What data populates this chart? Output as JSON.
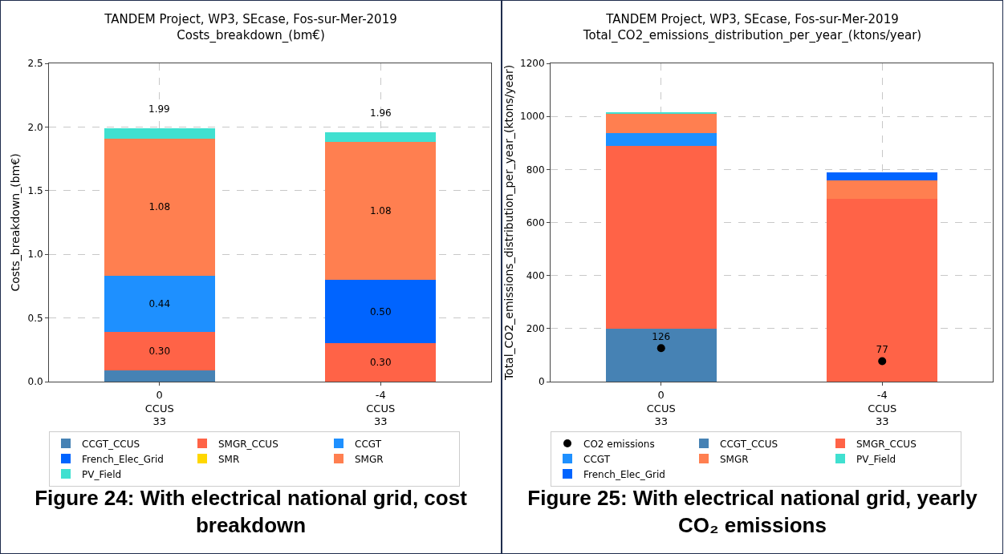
{
  "chart_data": [
    {
      "type": "bar",
      "stacked": true,
      "title": "TANDEM Project, WP3, SEcase, Fos-sur-Mer-2019\nCosts_breakdown_(bm€)",
      "ylabel": "Costs_breakdown_(bm€)",
      "categories": [
        "0\nCCUS\n33",
        "-4\nCCUS\n33"
      ],
      "series": [
        {
          "name": "CCGT_CCUS",
          "color": "#4682b4",
          "values": [
            0.09,
            0
          ],
          "value_labels": [
            null,
            null
          ]
        },
        {
          "name": "SMGR_CCUS",
          "color": "#ff6347",
          "values": [
            0.3,
            0.3
          ],
          "value_labels": [
            "0.30",
            "0.30"
          ]
        },
        {
          "name": "CCGT",
          "color": "#1e90ff",
          "values": [
            0.44,
            0
          ],
          "value_labels": [
            "0.44",
            null
          ]
        },
        {
          "name": "French_Elec_Grid",
          "color": "#0064ff",
          "values": [
            0,
            0.5
          ],
          "value_labels": [
            null,
            "0.50"
          ]
        },
        {
          "name": "SMR",
          "color": "#ffd700",
          "values": [
            0,
            0
          ],
          "value_labels": [
            null,
            null
          ]
        },
        {
          "name": "SMGR",
          "color": "#ff7f50",
          "values": [
            1.08,
            1.08
          ],
          "value_labels": [
            "1.08",
            "1.08"
          ]
        },
        {
          "name": "PV_Field",
          "color": "#40e0d0",
          "values": [
            0.08,
            0.08
          ],
          "value_labels": [
            null,
            null
          ]
        }
      ],
      "totals": [
        "1.99",
        "1.96"
      ],
      "ylim": [
        0,
        2.5
      ],
      "yticks": [
        {
          "value": 0,
          "label": "0.0"
        },
        {
          "value": 0.5,
          "label": "0.5"
        },
        {
          "value": 1,
          "label": "1.0"
        },
        {
          "value": 1.5,
          "label": "1.5"
        },
        {
          "value": 2,
          "label": "2.0"
        },
        {
          "value": 2.5,
          "label": "2.5"
        }
      ],
      "grid": true,
      "legend": "bottom",
      "annotations": [
        "Figure 24: With electrical national grid, cost breakdown"
      ]
    },
    {
      "type": "bar",
      "stacked": true,
      "title": "TANDEM Project, WP3, SEcase, Fos-sur-Mer-2019\nTotal_CO2_emissions_distribution_per_year_(ktons/year)",
      "ylabel": "Total_CO2_emissions_distribution_per_year_(ktons/year)",
      "categories": [
        "0\nCCUS\n33",
        "-4\nCCUS\n33"
      ],
      "series": [
        {
          "name": "CO2 emissions",
          "type": "scatter",
          "color": "#000000",
          "x": [
            "0\nCCUS\n33",
            "-4\nCCUS\n33"
          ],
          "values": [
            126,
            77
          ],
          "value_labels": [
            "126",
            "77"
          ]
        },
        {
          "name": "CCGT_CCUS",
          "color": "#4682b4",
          "values": [
            200,
            0
          ]
        },
        {
          "name": "SMGR_CCUS",
          "color": "#ff6347",
          "values": [
            688,
            688
          ]
        },
        {
          "name": "CCGT",
          "color": "#1e90ff",
          "values": [
            49,
            0
          ]
        },
        {
          "name": "SMGR",
          "color": "#ff7f50",
          "values": [
            73,
            72
          ]
        },
        {
          "name": "PV_Field",
          "color": "#40e0d0",
          "values": [
            5,
            null
          ]
        },
        {
          "name": "French_Elec_Grid",
          "color": "#0064ff",
          "values": [
            0,
            30
          ]
        }
      ],
      "ylim": [
        0,
        1200
      ],
      "yticks": [
        0,
        200,
        400,
        600,
        800,
        1000,
        1200
      ],
      "grid": true,
      "legend": "bottom",
      "marker": "circle",
      "annotations": [
        "Figure 25: With electrical national grid, yearly CO₂ emissions"
      ]
    }
  ]
}
